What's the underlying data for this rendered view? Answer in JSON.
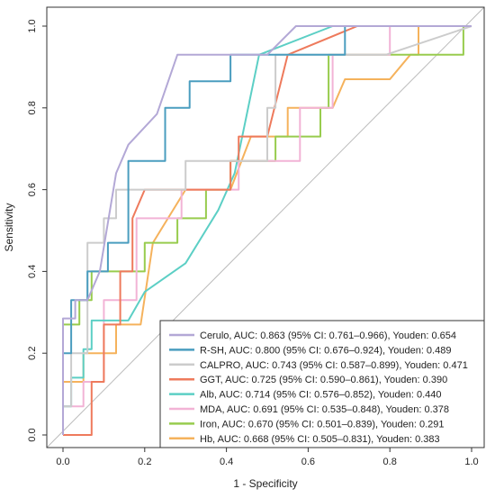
{
  "chart_data": {
    "type": "line",
    "title": "",
    "xlabel": "1 - Specificity",
    "ylabel": "Sensitivity",
    "xlim": [
      0,
      1
    ],
    "ylim": [
      0,
      1
    ],
    "x_ticks": [
      "0.0",
      "0.2",
      "0.4",
      "0.6",
      "0.8",
      "1.0"
    ],
    "y_ticks": [
      "0.0",
      "0.2",
      "0.4",
      "0.6",
      "0.8",
      "1.0"
    ],
    "legend_position": "bottom-right",
    "reference_line": true,
    "series": [
      {
        "name": "Cerulo, AUC: 0.863 (95% CI: 0.761–0.966), Youden: 0.654",
        "color": "#b3a8d6",
        "points": [
          [
            0,
            0
          ],
          [
            0,
            0.285
          ],
          [
            0.03,
            0.285
          ],
          [
            0.03,
            0.33
          ],
          [
            0.06,
            0.33
          ],
          [
            0.09,
            0.4
          ],
          [
            0.13,
            0.64
          ],
          [
            0.16,
            0.71
          ],
          [
            0.23,
            0.785
          ],
          [
            0.28,
            0.93
          ],
          [
            0.5,
            0.93
          ],
          [
            0.57,
            1
          ],
          [
            1,
            1
          ]
        ]
      },
      {
        "name": "R-SH, AUC: 0.800 (95% CI: 0.676–0.924), Youden: 0.489",
        "color": "#4a9dbf",
        "points": [
          [
            0,
            0
          ],
          [
            0,
            0.2
          ],
          [
            0.02,
            0.2
          ],
          [
            0.02,
            0.33
          ],
          [
            0.06,
            0.33
          ],
          [
            0.06,
            0.4
          ],
          [
            0.11,
            0.4
          ],
          [
            0.11,
            0.47
          ],
          [
            0.16,
            0.47
          ],
          [
            0.16,
            0.67
          ],
          [
            0.25,
            0.67
          ],
          [
            0.25,
            0.8
          ],
          [
            0.31,
            0.8
          ],
          [
            0.31,
            0.865
          ],
          [
            0.41,
            0.865
          ],
          [
            0.41,
            0.93
          ],
          [
            0.69,
            0.93
          ],
          [
            0.69,
            1
          ],
          [
            1,
            1
          ]
        ]
      },
      {
        "name": "CALPRO, AUC: 0.743 (95% CI: 0.587–0.899), Youden: 0.471",
        "color": "#cccccc",
        "points": [
          [
            0,
            0
          ],
          [
            0,
            0.07
          ],
          [
            0.02,
            0.07
          ],
          [
            0.02,
            0.2
          ],
          [
            0.06,
            0.2
          ],
          [
            0.06,
            0.47
          ],
          [
            0.1,
            0.47
          ],
          [
            0.1,
            0.53
          ],
          [
            0.13,
            0.53
          ],
          [
            0.13,
            0.6
          ],
          [
            0.3,
            0.6
          ],
          [
            0.3,
            0.67
          ],
          [
            0.5,
            0.67
          ],
          [
            0.5,
            0.8
          ],
          [
            0.52,
            0.8
          ],
          [
            0.52,
            0.93
          ],
          [
            0.79,
            0.93
          ],
          [
            1,
            1
          ]
        ]
      },
      {
        "name": "GGT, AUC: 0.725 (95% CI: 0.590–0.861), Youden: 0.390",
        "color": "#ee7a5c",
        "points": [
          [
            0,
            0
          ],
          [
            0.07,
            0
          ],
          [
            0.07,
            0.13
          ],
          [
            0.1,
            0.13
          ],
          [
            0.1,
            0.27
          ],
          [
            0.14,
            0.27
          ],
          [
            0.14,
            0.4
          ],
          [
            0.17,
            0.4
          ],
          [
            0.17,
            0.53
          ],
          [
            0.2,
            0.6
          ],
          [
            0.41,
            0.6
          ],
          [
            0.41,
            0.67
          ],
          [
            0.43,
            0.67
          ],
          [
            0.43,
            0.73
          ],
          [
            0.5,
            0.73
          ],
          [
            0.55,
            0.93
          ],
          [
            0.72,
            1
          ],
          [
            1,
            1
          ]
        ]
      },
      {
        "name": "Alb, AUC: 0.714 (95% CI: 0.576–0.852), Youden: 0.440",
        "color": "#5ccfc5",
        "points": [
          [
            0,
            0
          ],
          [
            0,
            0.07
          ],
          [
            0.02,
            0.07
          ],
          [
            0.02,
            0.14
          ],
          [
            0.05,
            0.14
          ],
          [
            0.05,
            0.21
          ],
          [
            0.07,
            0.21
          ],
          [
            0.07,
            0.28
          ],
          [
            0.16,
            0.28
          ],
          [
            0.2,
            0.35
          ],
          [
            0.3,
            0.42
          ],
          [
            0.38,
            0.55
          ],
          [
            0.42,
            0.64
          ],
          [
            0.48,
            0.93
          ],
          [
            0.66,
            1
          ],
          [
            1,
            1
          ]
        ]
      },
      {
        "name": "MDA, AUC: 0.691 (95% CI: 0.535–0.848), Youden: 0.378",
        "color": "#f2b3d6",
        "points": [
          [
            0,
            0
          ],
          [
            0,
            0.07
          ],
          [
            0.05,
            0.07
          ],
          [
            0.05,
            0.13
          ],
          [
            0.1,
            0.13
          ],
          [
            0.1,
            0.33
          ],
          [
            0.18,
            0.33
          ],
          [
            0.18,
            0.53
          ],
          [
            0.29,
            0.53
          ],
          [
            0.29,
            0.6
          ],
          [
            0.43,
            0.6
          ],
          [
            0.43,
            0.67
          ],
          [
            0.58,
            0.67
          ],
          [
            0.58,
            0.8
          ],
          [
            0.66,
            0.8
          ],
          [
            0.66,
            0.93
          ],
          [
            0.8,
            0.93
          ],
          [
            0.8,
            1
          ],
          [
            1,
            1
          ]
        ]
      },
      {
        "name": "Iron, AUC: 0.670 (95% CI: 0.501–0.839), Youden: 0.291",
        "color": "#98cc4e",
        "points": [
          [
            0,
            0
          ],
          [
            0,
            0.27
          ],
          [
            0.04,
            0.27
          ],
          [
            0.04,
            0.33
          ],
          [
            0.07,
            0.33
          ],
          [
            0.07,
            0.4
          ],
          [
            0.2,
            0.4
          ],
          [
            0.2,
            0.47
          ],
          [
            0.28,
            0.47
          ],
          [
            0.28,
            0.53
          ],
          [
            0.35,
            0.53
          ],
          [
            0.35,
            0.6
          ],
          [
            0.41,
            0.6
          ],
          [
            0.41,
            0.67
          ],
          [
            0.52,
            0.67
          ],
          [
            0.52,
            0.73
          ],
          [
            0.63,
            0.73
          ],
          [
            0.63,
            0.8
          ],
          [
            0.65,
            0.8
          ],
          [
            0.65,
            0.93
          ],
          [
            0.98,
            0.93
          ],
          [
            0.98,
            1
          ],
          [
            1,
            1
          ]
        ]
      },
      {
        "name": "Hb, AUC: 0.668 (95% CI: 0.505–0.831), Youden: 0.383",
        "color": "#f5b25c",
        "points": [
          [
            0,
            0
          ],
          [
            0,
            0.13
          ],
          [
            0.05,
            0.13
          ],
          [
            0.05,
            0.2
          ],
          [
            0.13,
            0.2
          ],
          [
            0.13,
            0.27
          ],
          [
            0.19,
            0.27
          ],
          [
            0.22,
            0.47
          ],
          [
            0.3,
            0.6
          ],
          [
            0.41,
            0.6
          ],
          [
            0.46,
            0.73
          ],
          [
            0.55,
            0.73
          ],
          [
            0.55,
            0.8
          ],
          [
            0.66,
            0.8
          ],
          [
            0.69,
            0.87
          ],
          [
            0.8,
            0.87
          ],
          [
            0.85,
            0.93
          ],
          [
            0.87,
            0.93
          ],
          [
            0.87,
            1
          ],
          [
            1,
            1
          ]
        ]
      }
    ]
  }
}
